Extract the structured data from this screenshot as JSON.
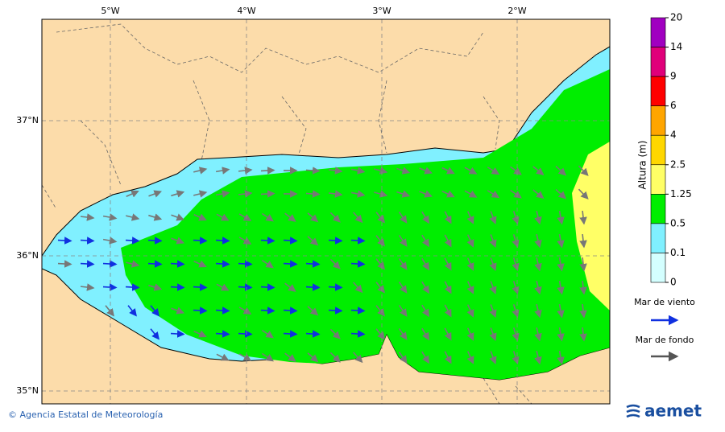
{
  "map": {
    "lon_labels": [
      "5°W",
      "4°W",
      "3°W",
      "2°W"
    ],
    "lat_labels": [
      "37°N",
      "36°N",
      "35°N"
    ]
  },
  "colorbar": {
    "title": "Altura (m)",
    "labels": [
      "20",
      "14",
      "9",
      "6",
      "4",
      "2.5",
      "1.25",
      "0.5",
      "0.1",
      "0"
    ],
    "colors": [
      "#a000c0",
      "#e0007a",
      "#ff0000",
      "#ffa500",
      "#ffd700",
      "#ffff66",
      "#00ee00",
      "#80f0ff",
      "#d4ffff"
    ]
  },
  "legend": {
    "wind_sea": "Mar de viento",
    "swell": "Mar de fondo"
  },
  "footer": {
    "credit": "© Agencia Estatal de Meteorología",
    "logo": "aemet"
  }
}
